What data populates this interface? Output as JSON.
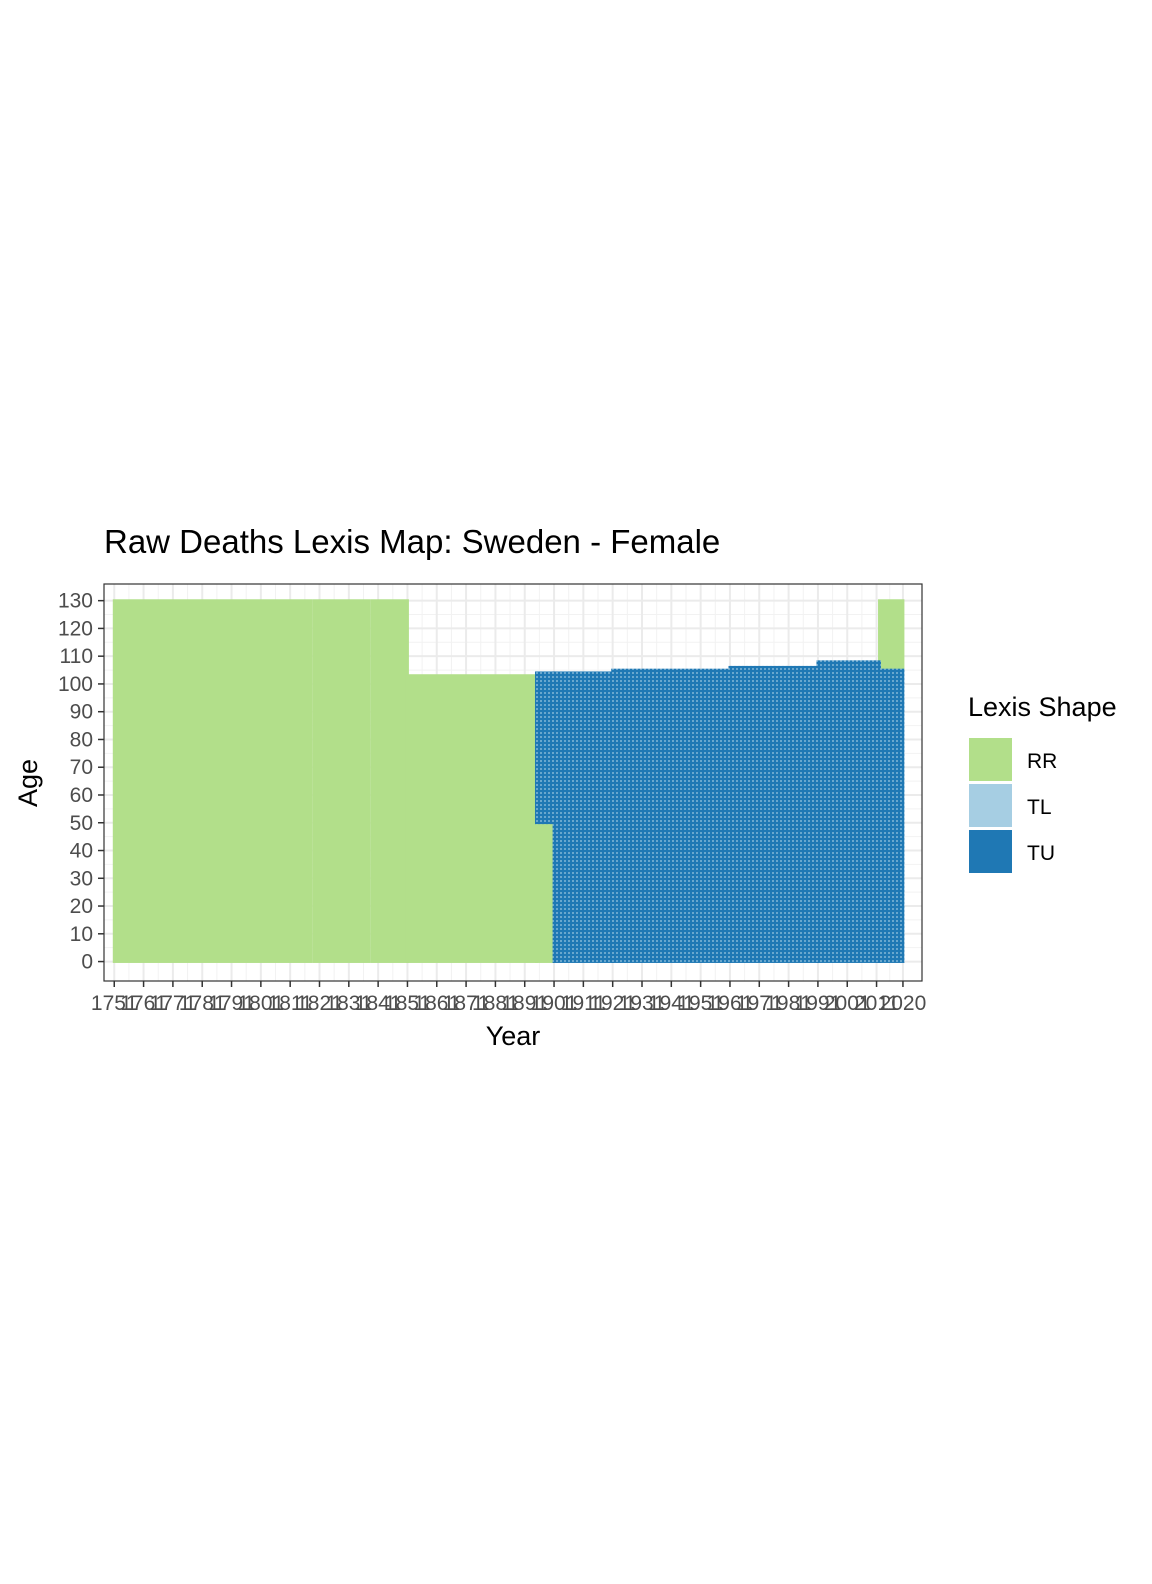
{
  "chart_data": {
    "type": "heatmap",
    "title": "Raw Deaths Lexis Map: Sweden - Female",
    "xlabel": "Year",
    "ylabel": "Age",
    "xlim": [
      1751,
      2020
    ],
    "ylim": [
      -7,
      136
    ],
    "x_ticks": [
      1751,
      1761,
      1771,
      1781,
      1791,
      1801,
      1811,
      1821,
      1831,
      1841,
      1851,
      1861,
      1871,
      1881,
      1891,
      1901,
      1911,
      1921,
      1931,
      1941,
      1951,
      1961,
      1971,
      1981,
      1991,
      2001,
      2011,
      2020
    ],
    "x_tick_labels": [
      "1751",
      "1761",
      "1771",
      "1781",
      "1791",
      "1801",
      "1811",
      "1821",
      "1831",
      "1841",
      "1851",
      "1861",
      "1871",
      "1881",
      "1891",
      "1901",
      "1911",
      "1921",
      "1931",
      "1941",
      "1951",
      "1961",
      "1971",
      "1981",
      "1991",
      "2001",
      "2011",
      "2020"
    ],
    "y_ticks": [
      0,
      10,
      20,
      30,
      40,
      50,
      60,
      70,
      80,
      90,
      100,
      110,
      120,
      130
    ],
    "grid": true,
    "legend": {
      "title": "Lexis Shape",
      "placement": "right",
      "entries": [
        {
          "label": "RR",
          "color": "#b2df8a"
        },
        {
          "label": "TL",
          "color": "#a6cee3"
        },
        {
          "label": "TU",
          "color": "#1f78b4"
        }
      ]
    },
    "regions": [
      {
        "shape": "RR",
        "x": [
          1751,
          1818
        ],
        "y": [
          0,
          130
        ]
      },
      {
        "shape": "RR",
        "x": [
          1819,
          1838
        ],
        "y": [
          0,
          130
        ]
      },
      {
        "shape": "RR",
        "x": [
          1839,
          1851
        ],
        "y": [
          0,
          130
        ]
      },
      {
        "shape": "RR",
        "x": [
          1851,
          1895
        ],
        "y": [
          0,
          103
        ]
      },
      {
        "shape": "RR",
        "x": [
          1895,
          1901
        ],
        "y": [
          0,
          50
        ]
      },
      {
        "shape": "RR",
        "x": [
          2012,
          2020
        ],
        "y": [
          105,
          130
        ]
      },
      {
        "shape": "TU",
        "x": [
          1895,
          1901
        ],
        "y": [
          50,
          104
        ]
      },
      {
        "shape": "TU",
        "x": [
          1901,
          1921
        ],
        "y": [
          0,
          104
        ]
      },
      {
        "shape": "TU",
        "x": [
          1921,
          1961
        ],
        "y": [
          0,
          105
        ]
      },
      {
        "shape": "TU",
        "x": [
          1961,
          1991
        ],
        "y": [
          0,
          106
        ]
      },
      {
        "shape": "TU",
        "x": [
          1991,
          2012
        ],
        "y": [
          0,
          108
        ]
      },
      {
        "shape": "TU",
        "x": [
          2012,
          2020
        ],
        "y": [
          0,
          105
        ]
      }
    ]
  }
}
